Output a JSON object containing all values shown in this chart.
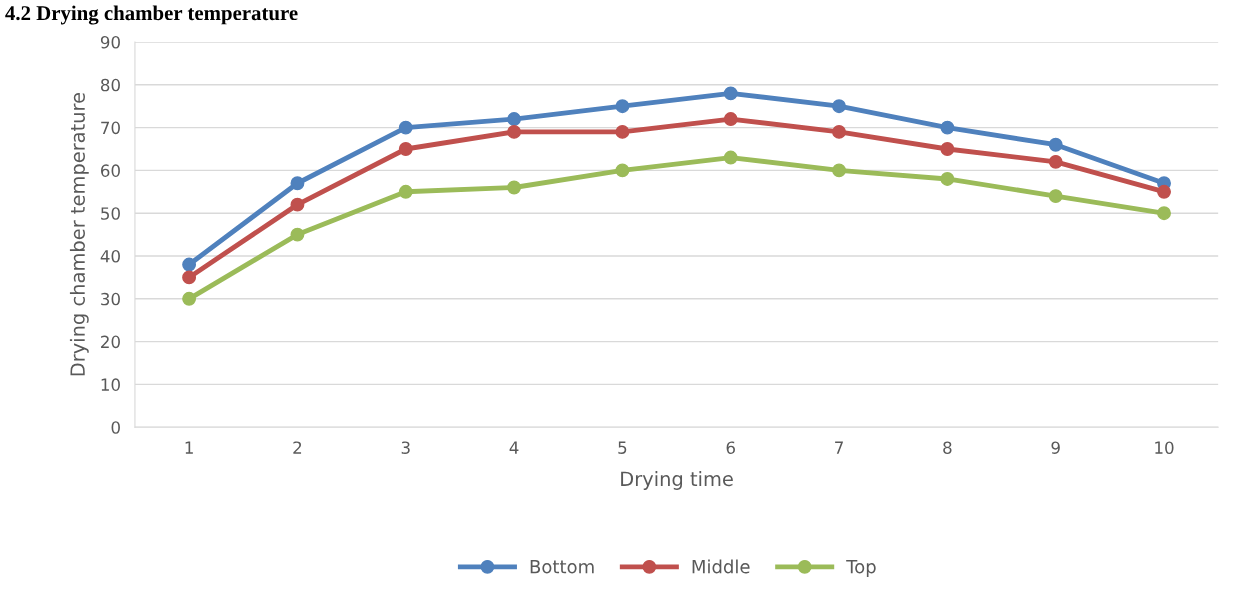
{
  "chart_data": {
    "type": "line",
    "title": "4.2 Drying chamber temperature",
    "xlabel": "Drying time",
    "ylabel": "Drying chamber temperature",
    "categories": [
      "1",
      "2",
      "3",
      "4",
      "5",
      "6",
      "7",
      "8",
      "9",
      "10"
    ],
    "series": [
      {
        "name": "Bottom",
        "color": "#4f81bd",
        "values": [
          38,
          57,
          70,
          72,
          75,
          78,
          75,
          70,
          66,
          57
        ]
      },
      {
        "name": "Middle",
        "color": "#c0504d",
        "values": [
          35,
          52,
          65,
          69,
          69,
          72,
          69,
          65,
          62,
          55
        ]
      },
      {
        "name": "Top",
        "color": "#9bbb59",
        "values": [
          30,
          45,
          55,
          56,
          60,
          63,
          60,
          58,
          54,
          50
        ]
      }
    ],
    "ylim": [
      0,
      90
    ],
    "yticks": [
      0,
      10,
      20,
      30,
      40,
      50,
      60,
      70,
      80,
      90
    ],
    "grid": "y",
    "legend": "bottom",
    "marker": "circle",
    "line_style": "solid"
  }
}
